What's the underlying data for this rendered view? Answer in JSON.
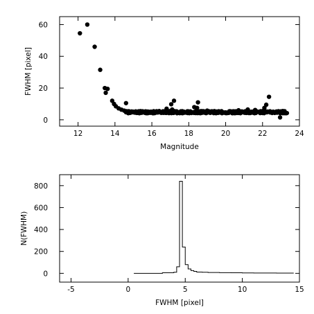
{
  "chart_data": [
    {
      "type": "scatter",
      "title": "",
      "xlabel": "Magnitude",
      "ylabel": "FWHM [pixel]",
      "xlim": [
        11,
        24
      ],
      "ylim": [
        -4,
        65
      ],
      "xticks": [
        "12",
        "14",
        "16",
        "18",
        "20",
        "22",
        "24"
      ],
      "yticks": [
        "0",
        "20",
        "40",
        "60"
      ],
      "series": [
        {
          "marker": "filled-circle",
          "x": [
            12.1,
            12.5,
            12.9,
            13.2,
            13.45,
            13.5,
            13.6,
            13.85,
            13.95,
            14.05,
            14.2,
            14.35,
            14.5,
            14.6,
            14.75,
            14.9,
            15.05,
            15.2,
            16.8,
            17.05,
            17.2,
            17.1,
            18.3,
            18.5,
            18.45,
            22.1,
            22.2,
            22.35,
            22.95,
            16.4,
            19.0,
            20.7,
            21.2,
            21.6,
            23.1
          ],
          "y": [
            54.5,
            60.0,
            46.0,
            31.5,
            20.0,
            17.0,
            19.5,
            12.0,
            10.0,
            8.5,
            7.2,
            6.4,
            5.8,
            10.5,
            5.4,
            5.1,
            4.9,
            4.8,
            7.0,
            9.8,
            12.0,
            6.5,
            8.0,
            11.0,
            7.5,
            7.5,
            9.5,
            14.5,
            1.5,
            5.5,
            5.8,
            6.0,
            6.5,
            6.2,
            5.5
          ]
        }
      ],
      "dense_band": {
        "x_range": [
          14.6,
          23.4
        ],
        "y_center": 4.8,
        "y_spread": 1.4
      }
    },
    {
      "type": "line",
      "title": "",
      "xlabel": "FWHM [pixel]",
      "ylabel": "N(FWHM)",
      "xlim": [
        -6,
        15
      ],
      "ylim": [
        -80,
        900
      ],
      "xticks": [
        "-5",
        "0",
        "5",
        "10",
        "15"
      ],
      "yticks": [
        "0",
        "200",
        "400",
        "600",
        "800"
      ],
      "series": [
        {
          "step": true,
          "x": [
            0.5,
            2.0,
            3.0,
            4.0,
            4.25,
            4.5,
            4.75,
            5.0,
            5.25,
            5.5,
            5.75,
            6.0,
            6.5,
            7.0,
            8.0,
            9.0,
            10.0,
            11.0,
            12.0,
            13.0,
            14.0,
            14.5
          ],
          "y": [
            0,
            0,
            5,
            10,
            60,
            840,
            240,
            80,
            40,
            25,
            18,
            12,
            10,
            8,
            6,
            5,
            4,
            3,
            3,
            2,
            2,
            2
          ]
        }
      ]
    }
  ]
}
